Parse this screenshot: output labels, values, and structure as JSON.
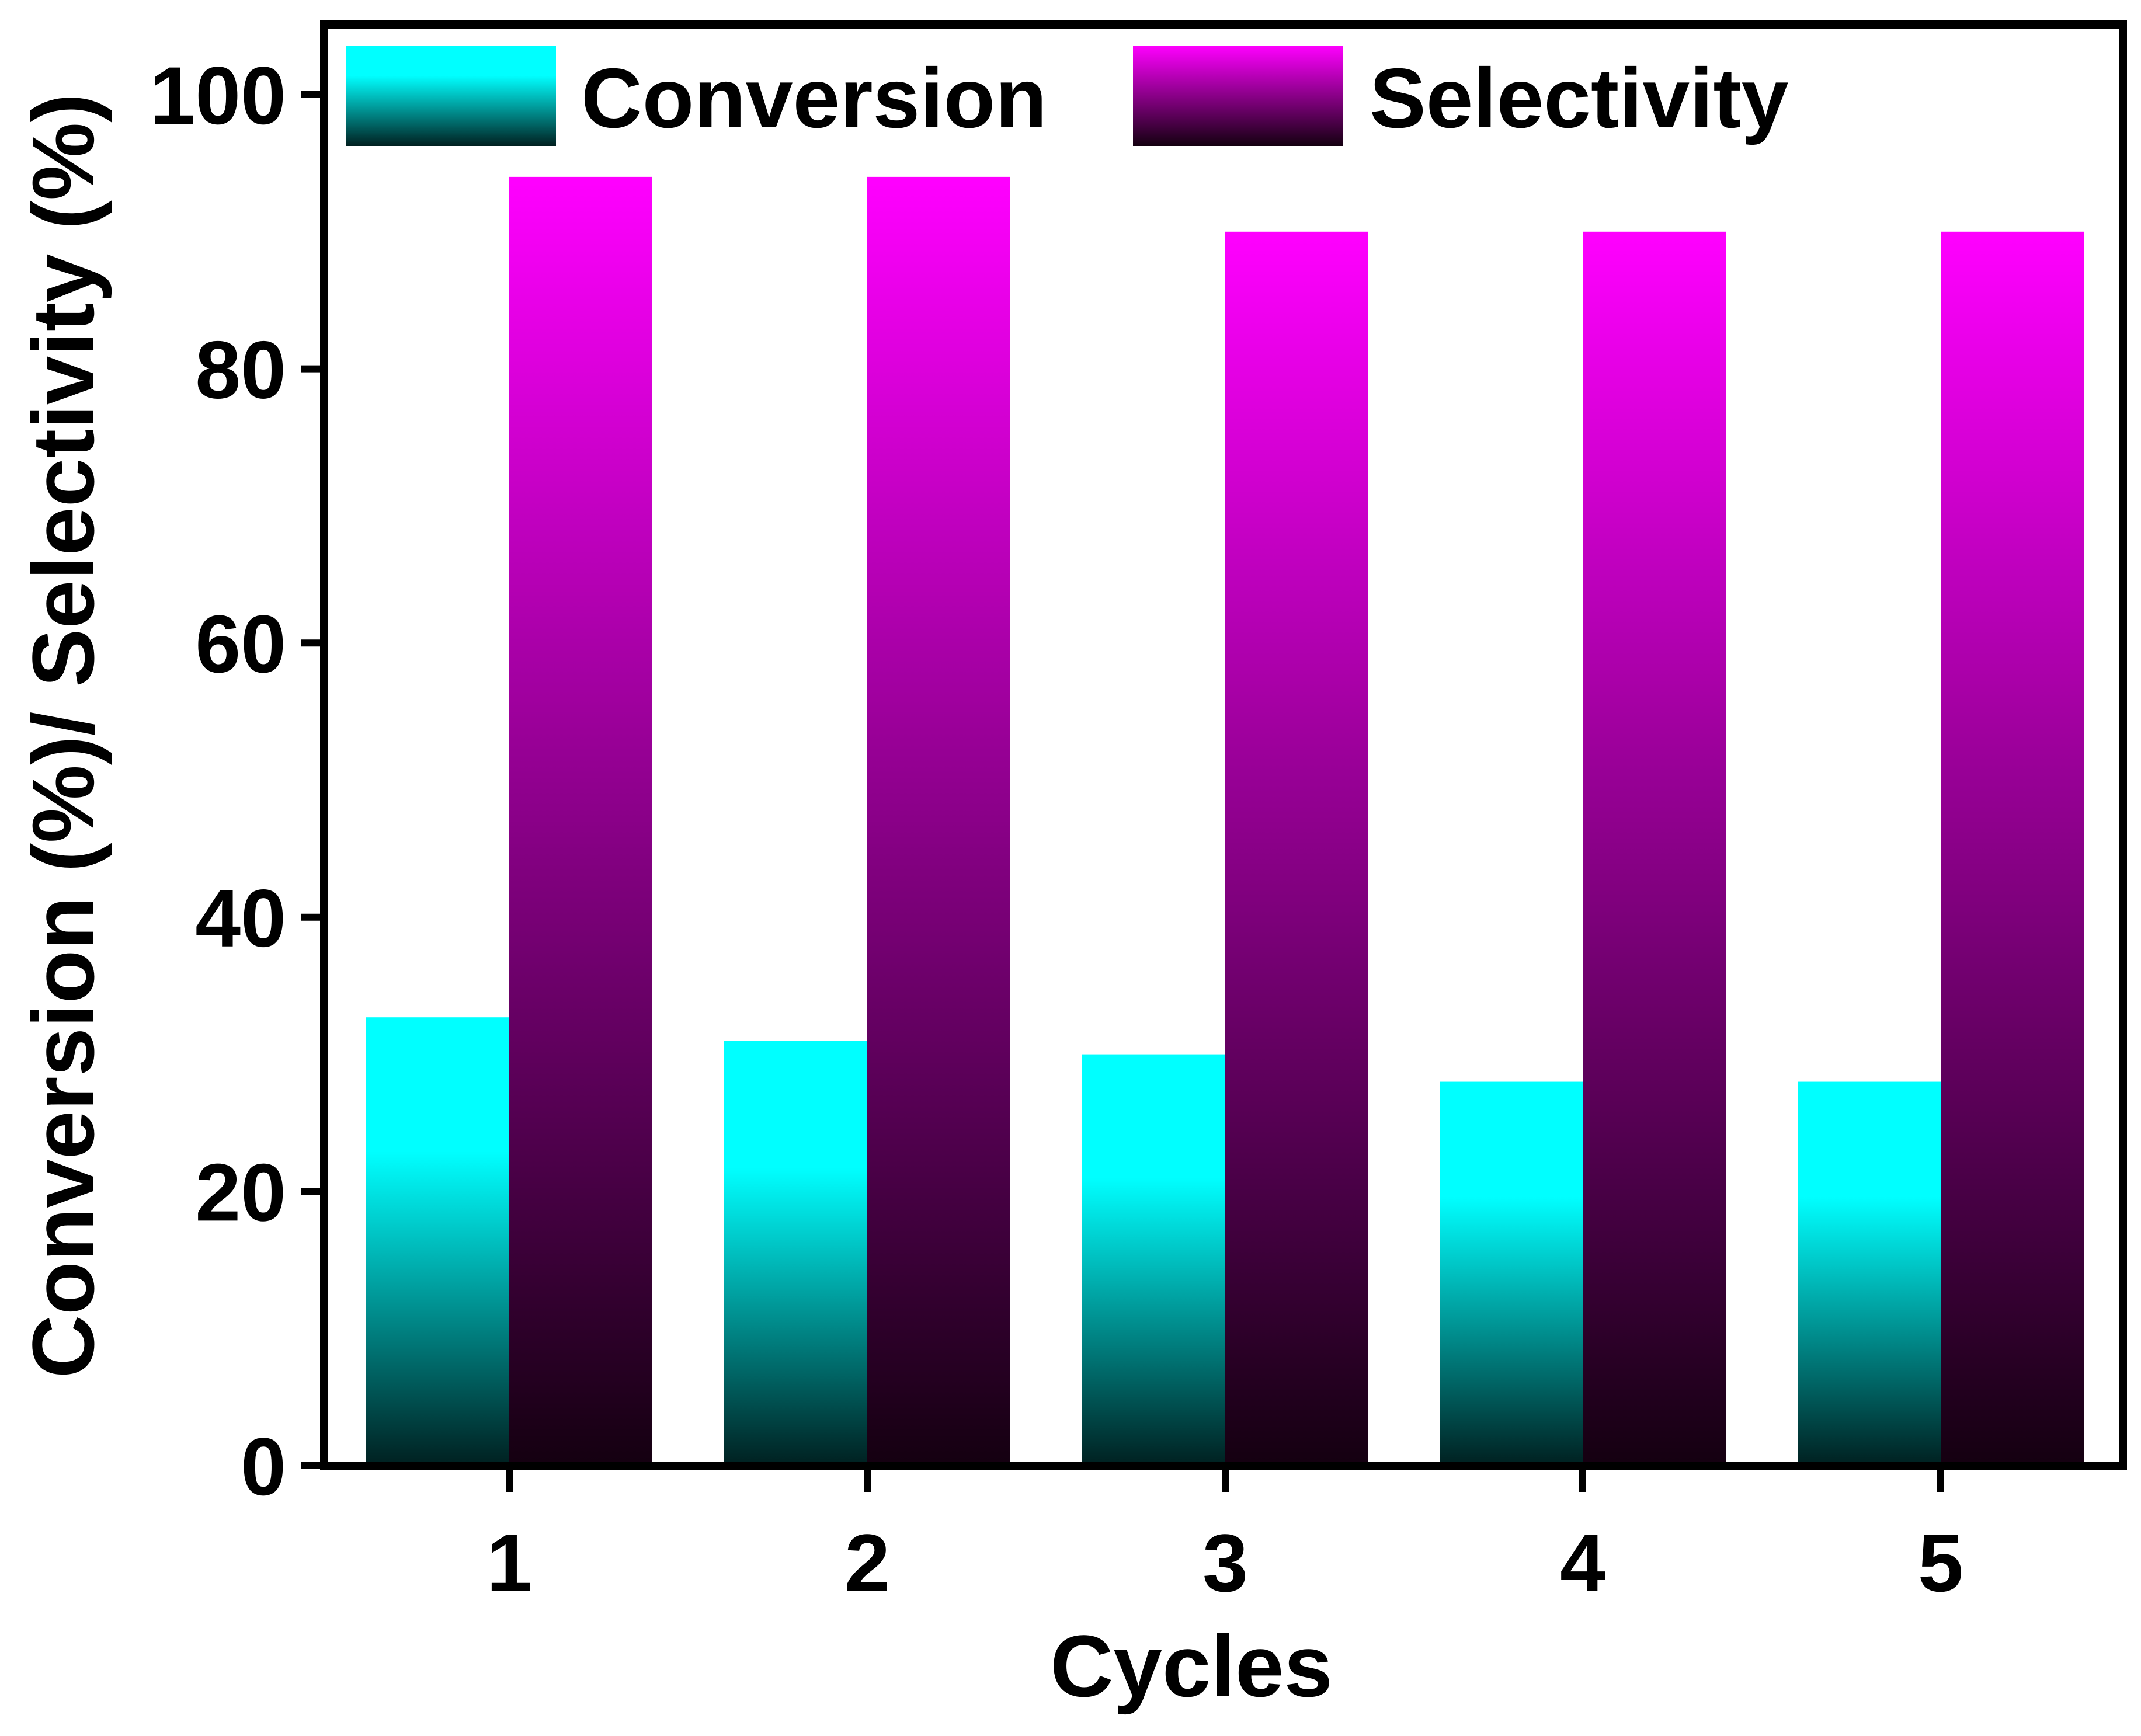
{
  "chart_data": {
    "type": "bar",
    "title": "",
    "xlabel": "Cycles",
    "ylabel": "Conversion (%)/ Selectivity (%)",
    "categories": [
      "1",
      "2",
      "3",
      "4",
      "5"
    ],
    "ylim": [
      0,
      105
    ],
    "yticks": [
      "0",
      "20",
      "40",
      "60",
      "80",
      "100"
    ],
    "grid": false,
    "legend_position": "top",
    "series": [
      {
        "name": "Conversion",
        "values": [
          32.7,
          31.0,
          30.0,
          28.0,
          28.0
        ],
        "color_top": "#00ffff",
        "color_bottom": "#002020"
      },
      {
        "name": "Selectivity",
        "values": [
          94.0,
          94.0,
          90.0,
          90.0,
          90.0
        ],
        "color_top": "#ff00ff",
        "color_bottom": "#140010"
      }
    ]
  }
}
